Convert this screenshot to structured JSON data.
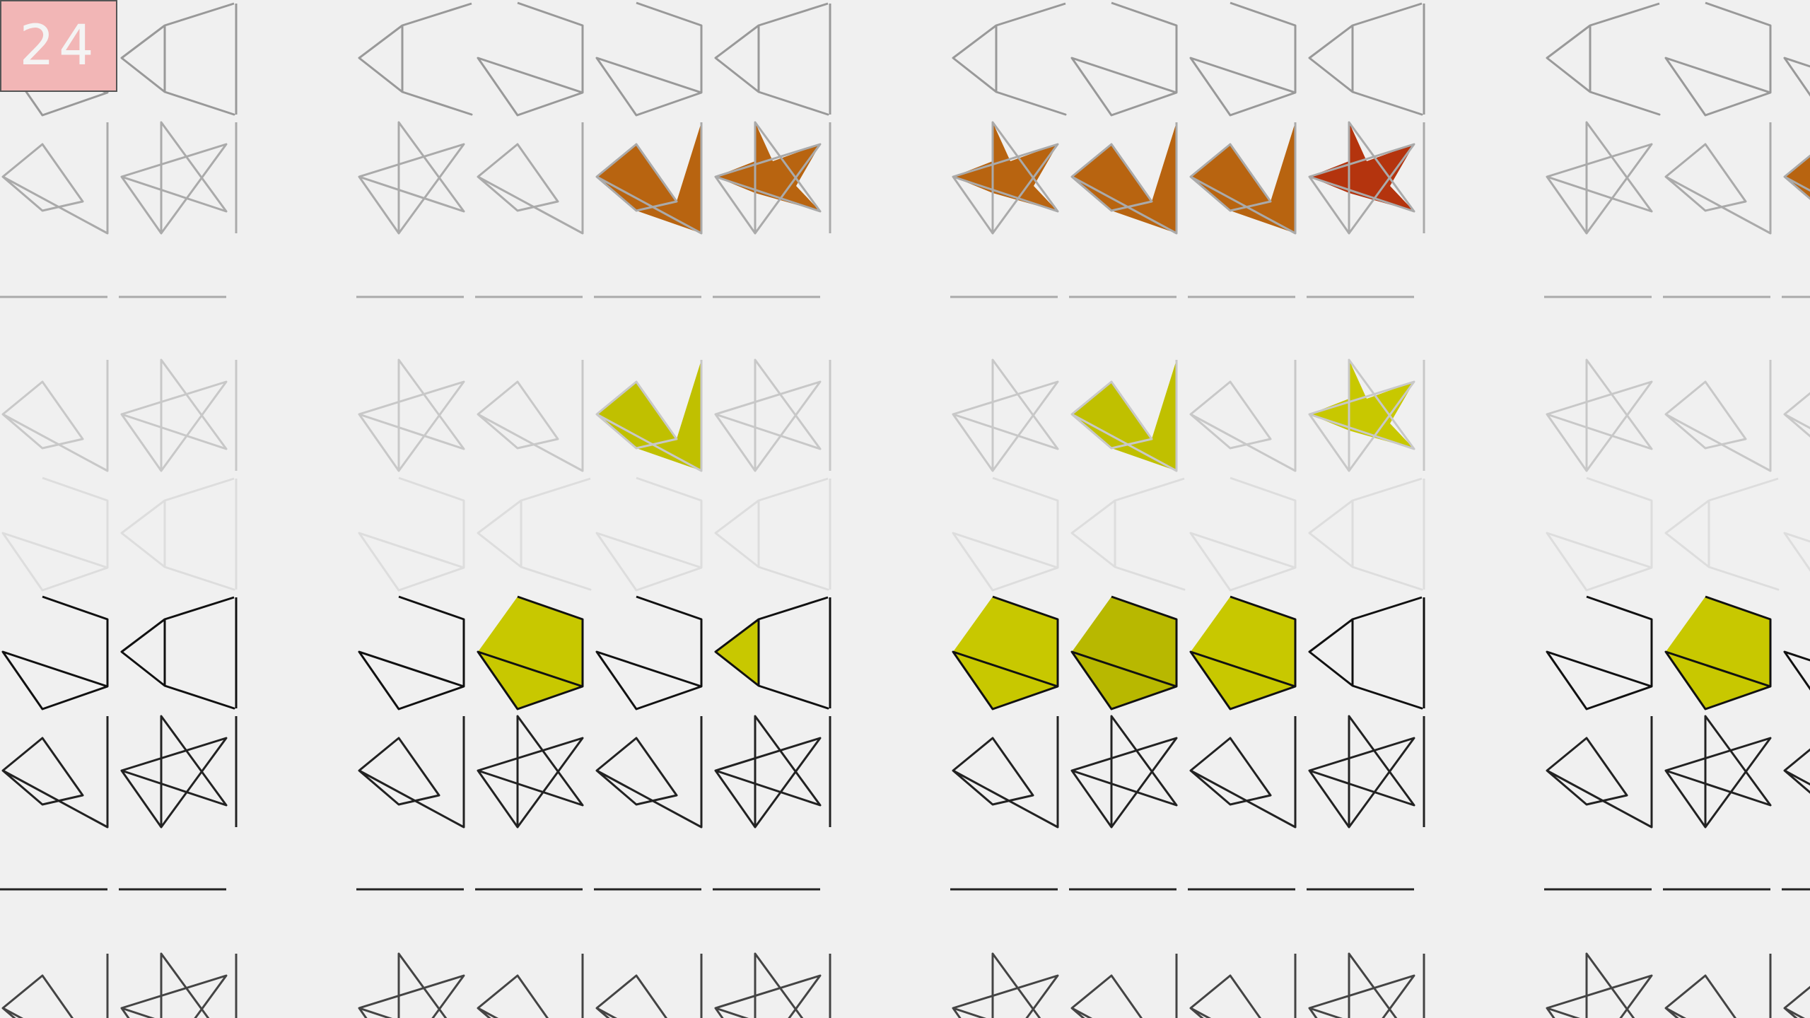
{
  "hud": {
    "counter": "24"
  },
  "palette": {
    "background": "#f0f0f0",
    "orange": "#b86410",
    "red_orange": "#b4340e",
    "yellow": "#c8c800",
    "olive_yellow": "#b8b800",
    "green": "#4cb814",
    "bright_green": "#30c800",
    "lime": "#40e020"
  },
  "shape_types": [
    "arrow",
    "pentagon",
    "bowtie",
    "star"
  ],
  "row_colors": [
    "#999999",
    "#aaaaaa",
    "#c8c8c8",
    "#dddddd",
    "#111111",
    "#222222",
    "#444444"
  ],
  "grid": [
    [
      "arrow",
      "pentagon",
      "pentagon",
      "arrow"
    ],
    [
      "star",
      "bowtie",
      "bowtie",
      "star"
    ],
    [
      "star",
      "bowtie",
      "bowtie",
      "star"
    ],
    [
      "pentagon",
      "arrow",
      "pentagon",
      "arrow"
    ],
    [
      "pentagon",
      "pentagon",
      "pentagon",
      "arrow"
    ],
    [
      "bowtie",
      "star",
      "bowtie",
      "star"
    ],
    [
      "star",
      "bowtie",
      "bowtie",
      "star"
    ]
  ],
  "fills": [
    {
      "band": 1,
      "row": 1,
      "col": 0,
      "color": "#b86410",
      "mode": "full"
    },
    {
      "band": 1,
      "row": 1,
      "col": 1,
      "color": "#b86410",
      "mode": "full"
    },
    {
      "band": 1,
      "row": 1,
      "col": 2,
      "color": "#b86410",
      "mode": "full"
    },
    {
      "band": 1,
      "row": 1,
      "col": 3,
      "color": "#b4340e",
      "mode": "full"
    },
    {
      "band": 0,
      "row": 1,
      "col": 2,
      "color": "#b86410",
      "mode": "full"
    },
    {
      "band": 0,
      "row": 1,
      "col": 3,
      "color": "#b86410",
      "mode": "full"
    },
    {
      "band": 2,
      "row": 1,
      "col": 2,
      "color": "#b86410",
      "mode": "full"
    },
    {
      "band": 0,
      "row": 2,
      "col": 2,
      "color": "#c0c000",
      "mode": "full"
    },
    {
      "band": 1,
      "row": 2,
      "col": 1,
      "color": "#c0c000",
      "mode": "full"
    },
    {
      "band": 1,
      "row": 2,
      "col": 3,
      "color": "#c8c800",
      "mode": "full"
    },
    {
      "band": 0,
      "row": 4,
      "col": 1,
      "color": "#c8c800",
      "mode": "full"
    },
    {
      "band": 0,
      "row": 4,
      "col": 3,
      "color": "#c8c800",
      "mode": "full"
    },
    {
      "band": 1,
      "row": 4,
      "col": 0,
      "color": "#c8c800",
      "mode": "full"
    },
    {
      "band": 1,
      "row": 4,
      "col": 1,
      "color": "#b8b800",
      "mode": "full"
    },
    {
      "band": 1,
      "row": 4,
      "col": 2,
      "color": "#c8c800",
      "mode": "full"
    },
    {
      "band": 2,
      "row": 4,
      "col": 1,
      "color": "#c8c800",
      "mode": "full"
    },
    {
      "band": -1,
      "row": 2,
      "col": 1,
      "color": "#4cb814",
      "mode": "full"
    },
    {
      "band": -1,
      "row": 4,
      "col": 1,
      "color": "#30c800",
      "mode": "full"
    }
  ]
}
